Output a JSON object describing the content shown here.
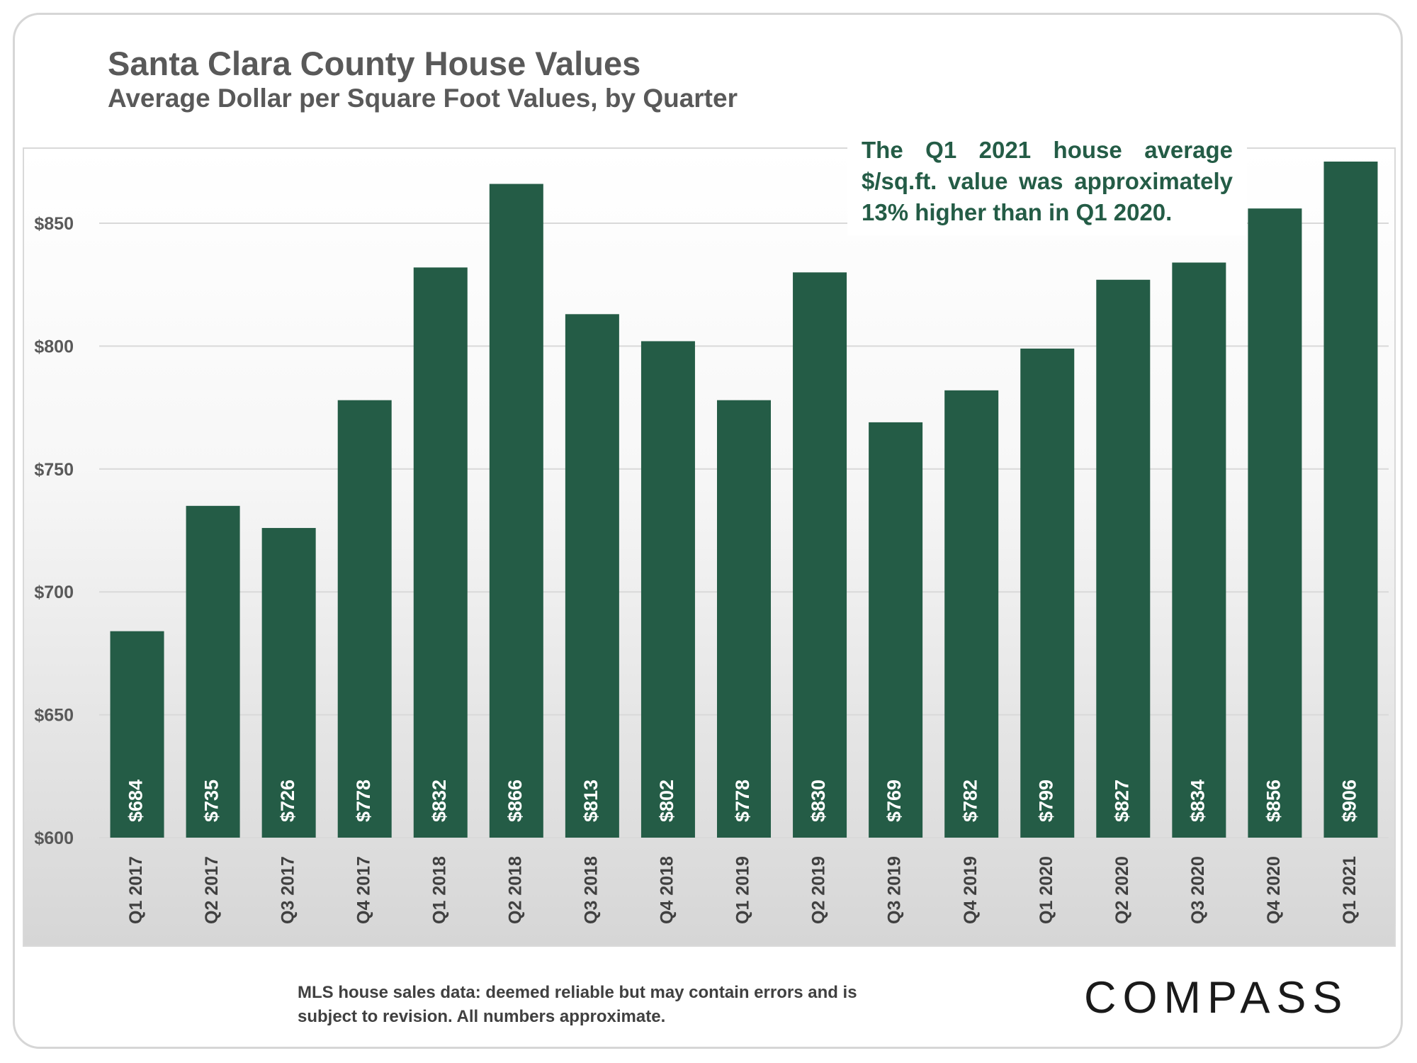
{
  "title": "Santa Clara County House Values",
  "subtitle": "Average Dollar per Square Foot Values, by Quarter",
  "annotation": "The Q1 2021 house average $/sq.ft. value was approximately 13% higher than in Q1 2020.",
  "footnote": {
    "line1": "MLS house sales data:  deemed reliable but may contain errors and is",
    "line2": "subject to revision. All numbers approximate."
  },
  "logo": "COMPASS",
  "colors": {
    "bar": "#245c46",
    "bar_label": "#ffffff",
    "annotation_text": "#245c46",
    "title": "#595959"
  },
  "chart_data": {
    "type": "bar",
    "title": "Santa Clara County House Values",
    "subtitle": "Average Dollar per Square Foot Values, by Quarter",
    "categories": [
      "Q1 2017",
      "Q2 2017",
      "Q3 2017",
      "Q4 2017",
      "Q1 2018",
      "Q2 2018",
      "Q3 2018",
      "Q4 2018",
      "Q1 2019",
      "Q2 2019",
      "Q3 2019",
      "Q4 2019",
      "Q1 2020",
      "Q2 2020",
      "Q3 2020",
      "Q4 2020",
      "Q1 2021"
    ],
    "values": [
      684,
      735,
      726,
      778,
      832,
      866,
      813,
      802,
      778,
      830,
      769,
      782,
      799,
      827,
      834,
      856,
      906
    ],
    "data_labels": [
      "$684",
      "$735",
      "$726",
      "$778",
      "$832",
      "$866",
      "$813",
      "$802",
      "$778",
      "$830",
      "$769",
      "$782",
      "$799",
      "$827",
      "$834",
      "$856",
      "$906"
    ],
    "y_ticks": [
      600,
      650,
      700,
      750,
      800,
      850
    ],
    "y_tick_labels": [
      "$600",
      "$650",
      "$700",
      "$750",
      "$800",
      "$850"
    ],
    "ylim": [
      600,
      880
    ],
    "grid": true,
    "xlabel": "",
    "ylabel": ""
  }
}
